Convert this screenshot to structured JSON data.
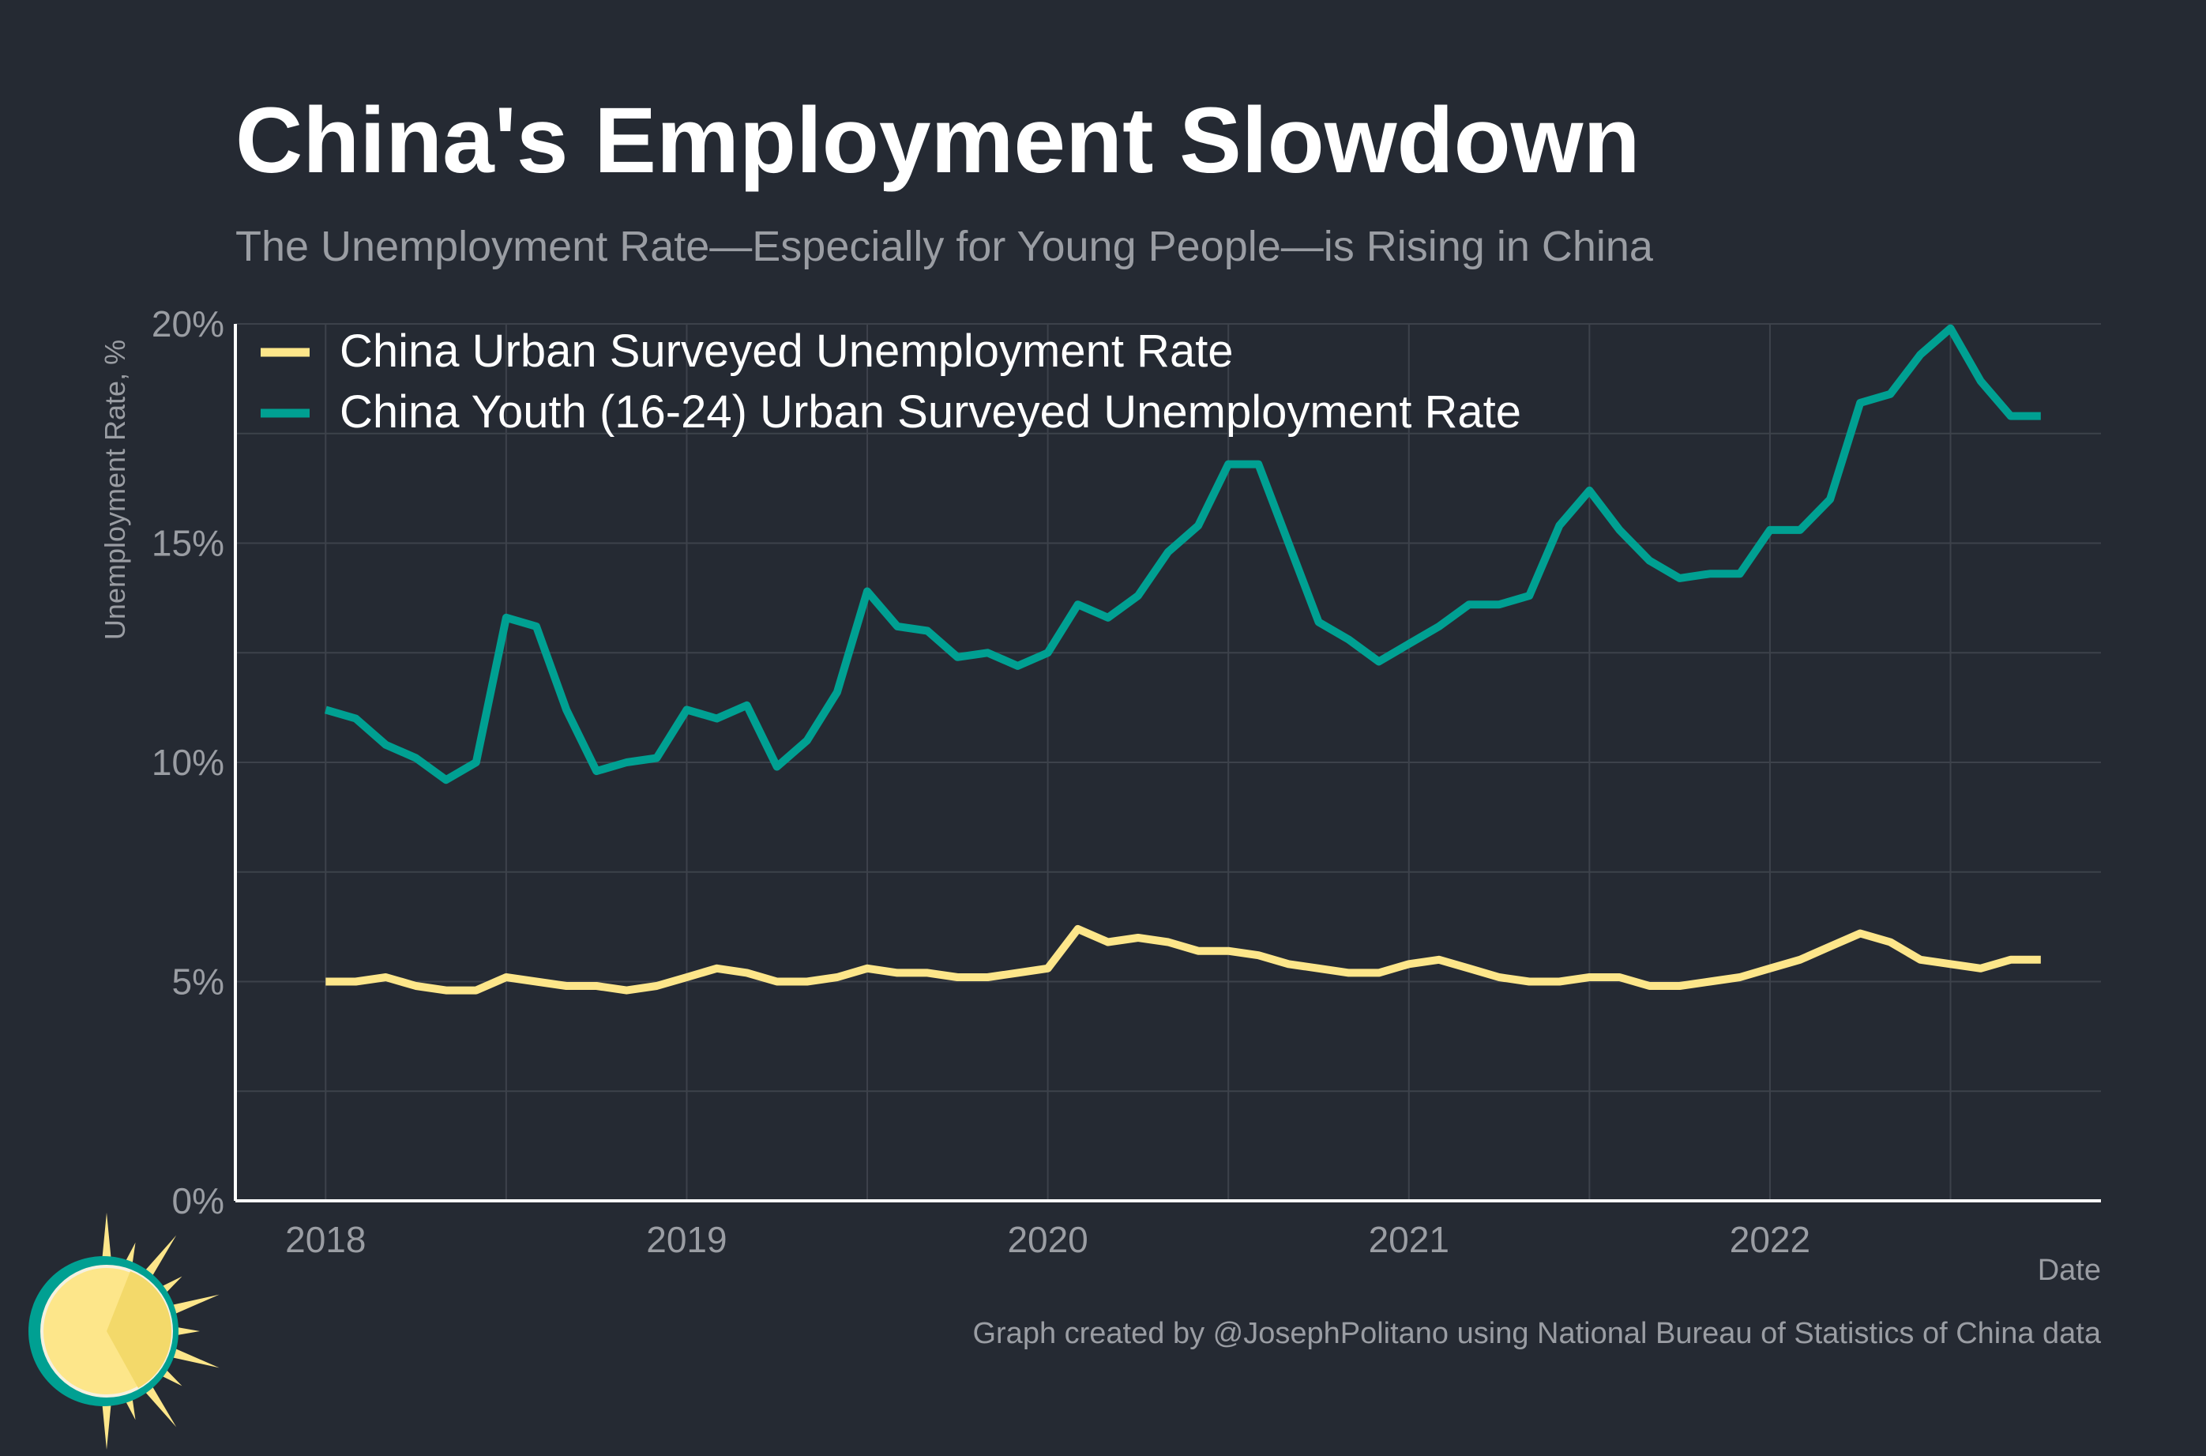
{
  "title": "China's Employment Slowdown",
  "subtitle": "The Unemployment Rate—Especially for Young People—is Rising in China",
  "caption": "Graph created by @JosephPolitano using National Bureau of Statistics of China data",
  "colors": {
    "background": "#252a33",
    "urban": "#fde68a",
    "youth": "#00a092",
    "grid": "#3d424b",
    "muted_text": "#9a9da3"
  },
  "logo_icon": "sun-logo-icon",
  "chart_data": {
    "type": "line",
    "title": "China's Employment Slowdown",
    "subtitle": "The Unemployment Rate—Especially for Young People—is Rising in China",
    "xlabel": "Date",
    "ylabel": "Unemployment Rate, %",
    "x_tick_labels": [
      "2018",
      "2019",
      "2020",
      "2021",
      "2022"
    ],
    "y_tick_labels": [
      "0%",
      "5%",
      "10%",
      "15%",
      "20%"
    ],
    "ylim": [
      0,
      20
    ],
    "xlim": [
      "2017-10",
      "2022-12"
    ],
    "grid": true,
    "legend_position": "top-left",
    "x": [
      "2018-01",
      "2018-02",
      "2018-03",
      "2018-04",
      "2018-05",
      "2018-06",
      "2018-07",
      "2018-08",
      "2018-09",
      "2018-10",
      "2018-11",
      "2018-12",
      "2019-01",
      "2019-02",
      "2019-03",
      "2019-04",
      "2019-05",
      "2019-06",
      "2019-07",
      "2019-08",
      "2019-09",
      "2019-10",
      "2019-11",
      "2019-12",
      "2020-01",
      "2020-02",
      "2020-03",
      "2020-04",
      "2020-05",
      "2020-06",
      "2020-07",
      "2020-08",
      "2020-09",
      "2020-10",
      "2020-11",
      "2020-12",
      "2021-01",
      "2021-02",
      "2021-03",
      "2021-04",
      "2021-05",
      "2021-06",
      "2021-07",
      "2021-08",
      "2021-09",
      "2021-10",
      "2021-11",
      "2021-12",
      "2022-01",
      "2022-02",
      "2022-03",
      "2022-04",
      "2022-05",
      "2022-06",
      "2022-07",
      "2022-08",
      "2022-09",
      "2022-10"
    ],
    "series": [
      {
        "name": "China Urban Surveyed Unemployment Rate",
        "color": "#fde68a",
        "values": [
          5.0,
          5.0,
          5.1,
          4.9,
          4.8,
          4.8,
          5.1,
          5.0,
          4.9,
          4.9,
          4.8,
          4.9,
          5.1,
          5.3,
          5.2,
          5.0,
          5.0,
          5.1,
          5.3,
          5.2,
          5.2,
          5.1,
          5.1,
          5.2,
          5.3,
          6.2,
          5.9,
          6.0,
          5.9,
          5.7,
          5.7,
          5.6,
          5.4,
          5.3,
          5.2,
          5.2,
          5.4,
          5.5,
          5.3,
          5.1,
          5.0,
          5.0,
          5.1,
          5.1,
          4.9,
          4.9,
          5.0,
          5.1,
          5.3,
          5.5,
          5.8,
          6.1,
          5.9,
          5.5,
          5.4,
          5.3,
          5.5,
          5.5
        ]
      },
      {
        "name": "China Youth (16-24) Urban Surveyed Unemployment Rate",
        "color": "#00a092",
        "values": [
          11.2,
          11.0,
          10.4,
          10.1,
          9.6,
          10.0,
          13.3,
          13.1,
          11.2,
          9.8,
          10.0,
          10.1,
          11.2,
          11.0,
          11.3,
          9.9,
          10.5,
          11.6,
          13.9,
          13.1,
          13.0,
          12.4,
          12.5,
          12.2,
          12.5,
          13.6,
          13.3,
          13.8,
          14.8,
          15.4,
          16.8,
          16.8,
          15.0,
          13.2,
          12.8,
          12.3,
          12.7,
          13.1,
          13.6,
          13.6,
          13.8,
          15.4,
          16.2,
          15.3,
          14.6,
          14.2,
          14.3,
          14.3,
          15.3,
          15.3,
          16.0,
          18.2,
          18.4,
          19.3,
          19.9,
          18.7,
          17.9,
          17.9
        ]
      }
    ]
  }
}
